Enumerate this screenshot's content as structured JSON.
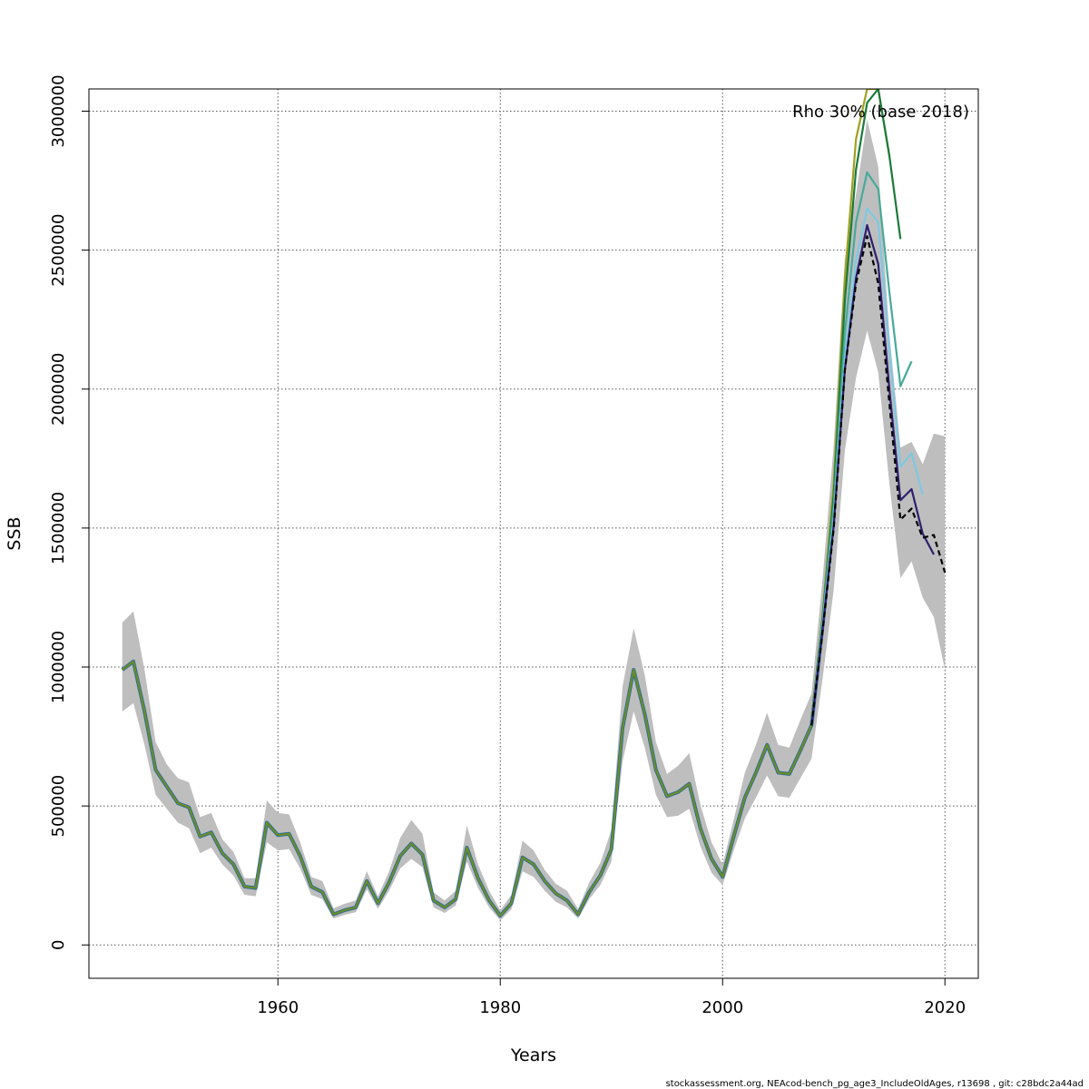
{
  "chart_data": {
    "type": "line",
    "title": "",
    "xlabel": "Years",
    "ylabel": "SSB",
    "xlim": [
      1943,
      2023
    ],
    "ylim": [
      -120000,
      3080000
    ],
    "x_ticks": [
      1960,
      1980,
      2000,
      2020
    ],
    "y_ticks": [
      0,
      500000,
      1000000,
      1500000,
      2000000,
      2500000,
      3000000
    ],
    "grid": true,
    "annotation": "Rho 30% (base 2018)",
    "footer": "stockassessment.org, NEAcod-bench_pg_age3_IncludeOldAges, r13698 , git: c28bdc2a44ad",
    "colors": {
      "band": "#bebebe",
      "base": "#000000",
      "peel1": "#2d1e6e",
      "peel2": "#7ec8e3",
      "peel3": "#48a999",
      "peel4": "#1a7a3a",
      "peel5": "#a0a020",
      "historic": "#6b8e23"
    },
    "historic": {
      "x": [
        1946,
        1947,
        1948,
        1949,
        1950,
        1951,
        1952,
        1953,
        1954,
        1955,
        1956,
        1957,
        1958,
        1959,
        1960,
        1961,
        1962,
        1963,
        1964,
        1965,
        1966,
        1967,
        1968,
        1969,
        1970,
        1971,
        1972,
        1973,
        1974,
        1975,
        1976,
        1977,
        1978,
        1979,
        1980,
        1981,
        1982,
        1983,
        1984,
        1985,
        1986,
        1987,
        1988,
        1989,
        1990,
        1991,
        1992,
        1993,
        1994,
        1995,
        1996,
        1997,
        1998,
        1999,
        2000,
        2001,
        2002,
        2003,
        2004,
        2005,
        2006,
        2007,
        2008,
        2009,
        2010
      ],
      "y": [
        990000,
        1020000,
        840000,
        630000,
        570000,
        510000,
        495000,
        390000,
        405000,
        330000,
        290000,
        210000,
        205000,
        440000,
        395000,
        400000,
        320000,
        210000,
        190000,
        110000,
        125000,
        135000,
        230000,
        150000,
        225000,
        320000,
        365000,
        325000,
        160000,
        135000,
        165000,
        350000,
        240000,
        160000,
        105000,
        150000,
        315000,
        290000,
        230000,
        185000,
        160000,
        110000,
        190000,
        250000,
        345000,
        780000,
        990000,
        830000,
        630000,
        535000,
        550000,
        580000,
        420000,
        310000,
        245000,
        390000,
        530000,
        620000,
        720000,
        620000,
        615000,
        700000,
        790000,
        1150000,
        1550000
      ]
    },
    "band": {
      "x": [
        1946,
        1947,
        1948,
        1949,
        1950,
        1951,
        1952,
        1953,
        1954,
        1955,
        1956,
        1957,
        1958,
        1959,
        1960,
        1961,
        1962,
        1963,
        1964,
        1965,
        1966,
        1967,
        1968,
        1969,
        1970,
        1971,
        1972,
        1973,
        1974,
        1975,
        1976,
        1977,
        1978,
        1979,
        1980,
        1981,
        1982,
        1983,
        1984,
        1985,
        1986,
        1987,
        1988,
        1989,
        1990,
        1991,
        1992,
        1993,
        1994,
        1995,
        1996,
        1997,
        1998,
        1999,
        2000,
        2001,
        2002,
        2003,
        2004,
        2005,
        2006,
        2007,
        2008,
        2009,
        2010,
        2011,
        2012,
        2013,
        2014,
        2015,
        2016,
        2017,
        2018,
        2019,
        2020
      ],
      "lower": [
        840000,
        870000,
        720000,
        540000,
        490000,
        440000,
        420000,
        330000,
        350000,
        290000,
        250000,
        180000,
        175000,
        370000,
        340000,
        345000,
        275000,
        180000,
        165000,
        95000,
        108000,
        118000,
        200000,
        130000,
        195000,
        275000,
        310000,
        280000,
        135000,
        115000,
        142000,
        300000,
        205000,
        135000,
        88000,
        128000,
        265000,
        245000,
        195000,
        155000,
        135000,
        95000,
        165000,
        215000,
        300000,
        660000,
        840000,
        710000,
        540000,
        460000,
        465000,
        490000,
        355000,
        260000,
        215000,
        340000,
        455000,
        530000,
        610000,
        535000,
        530000,
        600000,
        670000,
        960000,
        1280000,
        1780000,
        2040000,
        2210000,
        2060000,
        1660000,
        1320000,
        1380000,
        1250000,
        1180000,
        990000
      ],
      "upper": [
        1160000,
        1200000,
        990000,
        730000,
        650000,
        600000,
        585000,
        460000,
        475000,
        380000,
        335000,
        240000,
        240000,
        520000,
        475000,
        470000,
        370000,
        245000,
        230000,
        132000,
        148000,
        160000,
        265000,
        175000,
        265000,
        385000,
        450000,
        400000,
        190000,
        160000,
        195000,
        430000,
        290000,
        195000,
        125000,
        180000,
        375000,
        340000,
        270000,
        220000,
        195000,
        130000,
        225000,
        295000,
        415000,
        930000,
        1140000,
        970000,
        730000,
        615000,
        645000,
        690000,
        505000,
        370000,
        290000,
        450000,
        620000,
        720000,
        835000,
        720000,
        710000,
        810000,
        905000,
        1320000,
        1800000,
        2470000,
        2700000,
        2970000,
        2800000,
        2200000,
        1790000,
        1810000,
        1730000,
        1840000,
        1830000
      ]
    },
    "series": [
      {
        "x": [
          2008,
          2009,
          2010,
          2011,
          2012,
          2013,
          2014,
          2015,
          2016,
          2017,
          2018,
          2019,
          2020
        ],
        "values": [
          790000,
          1130000,
          1500000,
          2070000,
          2380000,
          2550000,
          2380000,
          1950000,
          1530000,
          1570000,
          1465000,
          1475000,
          1340000
        ],
        "dash": true,
        "colorKey": "base"
      },
      {
        "x": [
          2008,
          2009,
          2010,
          2011,
          2012,
          2013,
          2014,
          2015,
          2016,
          2017,
          2018,
          2019
        ],
        "values": [
          790000,
          1140000,
          1510000,
          2070000,
          2400000,
          2590000,
          2450000,
          2000000,
          1600000,
          1640000,
          1480000,
          1405000
        ],
        "dash": false,
        "colorKey": "peel1"
      },
      {
        "x": [
          2008,
          2009,
          2010,
          2011,
          2012,
          2013,
          2014,
          2015,
          2016,
          2017,
          2018
        ],
        "values": [
          795000,
          1150000,
          1530000,
          2110000,
          2460000,
          2650000,
          2600000,
          2150000,
          1720000,
          1770000,
          1620000
        ],
        "dash": false,
        "colorKey": "peel2"
      },
      {
        "x": [
          2008,
          2009,
          2010,
          2011,
          2012,
          2013,
          2014,
          2015,
          2016,
          2017
        ],
        "values": [
          800000,
          1170000,
          1580000,
          2200000,
          2600000,
          2780000,
          2720000,
          2350000,
          2010000,
          2100000
        ],
        "dash": false,
        "colorKey": "peel3"
      },
      {
        "x": [
          2008,
          2009,
          2010,
          2011,
          2012,
          2013,
          2014,
          2015,
          2016
        ],
        "values": [
          805000,
          1180000,
          1620000,
          2320000,
          2790000,
          3030000,
          3080000,
          2840000,
          2540000
        ],
        "dash": false,
        "colorKey": "peel4"
      },
      {
        "x": [
          2008,
          2009,
          2010,
          2011,
          2012,
          2013,
          2014,
          2015
        ],
        "values": [
          810000,
          1190000,
          1660000,
          2400000,
          2900000,
          3080000,
          3080000,
          2840000
        ],
        "dash": false,
        "colorKey": "peel5"
      }
    ]
  }
}
